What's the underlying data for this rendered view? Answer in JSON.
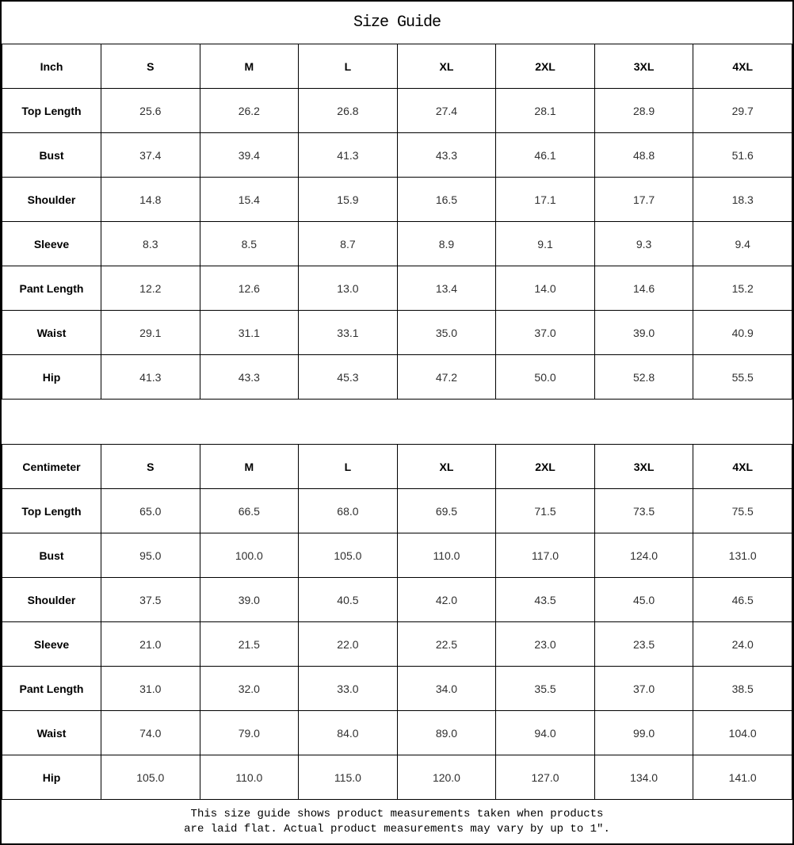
{
  "title": "Size Guide",
  "colors": {
    "border": "#000000",
    "heading_text": "#000000",
    "value_text": "#303030",
    "background": "#ffffff"
  },
  "tables": [
    {
      "unit_label": "Inch",
      "columns": [
        "S",
        "M",
        "L",
        "XL",
        "2XL",
        "3XL",
        "4XL"
      ],
      "rows": [
        {
          "label": "Top Length",
          "values": [
            "25.6",
            "26.2",
            "26.8",
            "27.4",
            "28.1",
            "28.9",
            "29.7"
          ]
        },
        {
          "label": "Bust",
          "values": [
            "37.4",
            "39.4",
            "41.3",
            "43.3",
            "46.1",
            "48.8",
            "51.6"
          ]
        },
        {
          "label": "Shoulder",
          "values": [
            "14.8",
            "15.4",
            "15.9",
            "16.5",
            "17.1",
            "17.7",
            "18.3"
          ]
        },
        {
          "label": "Sleeve",
          "values": [
            "8.3",
            "8.5",
            "8.7",
            "8.9",
            "9.1",
            "9.3",
            "9.4"
          ]
        },
        {
          "label": "Pant Length",
          "values": [
            "12.2",
            "12.6",
            "13.0",
            "13.4",
            "14.0",
            "14.6",
            "15.2"
          ]
        },
        {
          "label": "Waist",
          "values": [
            "29.1",
            "31.1",
            "33.1",
            "35.0",
            "37.0",
            "39.0",
            "40.9"
          ]
        },
        {
          "label": "Hip",
          "values": [
            "41.3",
            "43.3",
            "45.3",
            "47.2",
            "50.0",
            "52.8",
            "55.5"
          ]
        }
      ]
    },
    {
      "unit_label": "Centimeter",
      "columns": [
        "S",
        "M",
        "L",
        "XL",
        "2XL",
        "3XL",
        "4XL"
      ],
      "rows": [
        {
          "label": "Top Length",
          "values": [
            "65.0",
            "66.5",
            "68.0",
            "69.5",
            "71.5",
            "73.5",
            "75.5"
          ]
        },
        {
          "label": "Bust",
          "values": [
            "95.0",
            "100.0",
            "105.0",
            "110.0",
            "117.0",
            "124.0",
            "131.0"
          ]
        },
        {
          "label": "Shoulder",
          "values": [
            "37.5",
            "39.0",
            "40.5",
            "42.0",
            "43.5",
            "45.0",
            "46.5"
          ]
        },
        {
          "label": "Sleeve",
          "values": [
            "21.0",
            "21.5",
            "22.0",
            "22.5",
            "23.0",
            "23.5",
            "24.0"
          ]
        },
        {
          "label": "Pant Length",
          "values": [
            "31.0",
            "32.0",
            "33.0",
            "34.0",
            "35.5",
            "37.0",
            "38.5"
          ]
        },
        {
          "label": "Waist",
          "values": [
            "74.0",
            "79.0",
            "84.0",
            "89.0",
            "94.0",
            "99.0",
            "104.0"
          ]
        },
        {
          "label": "Hip",
          "values": [
            "105.0",
            "110.0",
            "115.0",
            "120.0",
            "127.0",
            "134.0",
            "141.0"
          ]
        }
      ]
    }
  ],
  "footer": {
    "line1": "This size guide shows product measurements taken when products",
    "line2": "are laid flat. Actual product measurements may vary by up to 1″."
  }
}
